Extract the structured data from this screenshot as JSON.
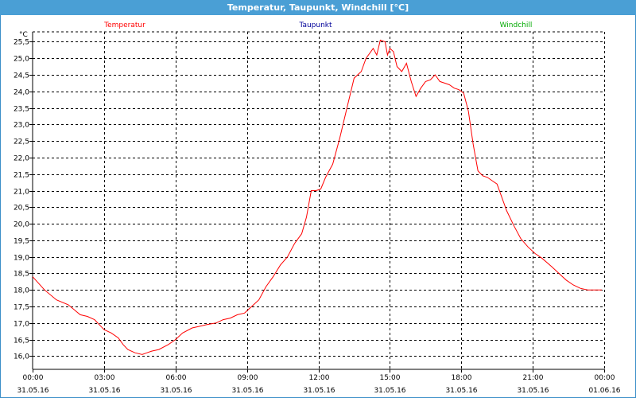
{
  "window": {
    "title": "Temperatur, Taupunkt, Windchill [°C]"
  },
  "colors": {
    "titlebar": "#4a9fd5",
    "temperatur": "#ff0000",
    "taupunkt": "#000099",
    "windchill": "#00aa00",
    "grid": "#000000"
  },
  "chart_data": {
    "type": "line",
    "title": "Temperatur, Taupunkt, Windchill [°C]",
    "ylabel": "°C",
    "ylim": [
      15.6,
      25.8
    ],
    "yticks": [
      "16,0",
      "16,5",
      "17,0",
      "17,5",
      "18,0",
      "18,5",
      "19,0",
      "19,5",
      "20,0",
      "20,5",
      "21,0",
      "21,5",
      "22,0",
      "22,5",
      "23,0",
      "23,5",
      "24,0",
      "24,5",
      "25,0",
      "25,5"
    ],
    "xlim": [
      0,
      24
    ],
    "xticks": [
      {
        "time": "00:00",
        "date": "31.05.16"
      },
      {
        "time": "03:00",
        "date": "31.05.16"
      },
      {
        "time": "06:00",
        "date": "31.05.16"
      },
      {
        "time": "09:00",
        "date": "31.05.16"
      },
      {
        "time": "12:00",
        "date": "31.05.16"
      },
      {
        "time": "15:00",
        "date": "31.05.16"
      },
      {
        "time": "18:00",
        "date": "31.05.16"
      },
      {
        "time": "21:00",
        "date": "31.05.16"
      },
      {
        "time": "00:00",
        "date": "01.06.16"
      }
    ],
    "grid": true,
    "legend": [
      {
        "name": "Temperatur",
        "color": "#ff0000"
      },
      {
        "name": "Taupunkt",
        "color": "#000099"
      },
      {
        "name": "Windchill",
        "color": "#00aa00"
      }
    ],
    "series": [
      {
        "name": "Temperatur",
        "color": "#ff0000",
        "x": [
          0,
          0.5,
          1,
          1.5,
          2,
          2.3,
          2.6,
          3,
          3.3,
          3.6,
          3.8,
          4,
          4.3,
          4.6,
          4.8,
          5,
          5.3,
          5.7,
          6,
          6.3,
          6.7,
          7,
          7.3,
          7.7,
          8,
          8.3,
          8.6,
          8.9,
          9.2,
          9.5,
          9.8,
          10.1,
          10.4,
          10.7,
          11,
          11.3,
          11.5,
          11.7,
          11.9,
          12.1,
          12.3,
          12.6,
          12.9,
          13.2,
          13.5,
          13.8,
          14,
          14.3,
          14.45,
          14.6,
          14.8,
          14.9,
          15,
          15.15,
          15.3,
          15.5,
          15.7,
          15.9,
          16.1,
          16.3,
          16.5,
          16.7,
          16.9,
          17.1,
          17.3,
          17.5,
          17.7,
          17.9,
          18.1,
          18.3,
          18.5,
          18.7,
          18.9,
          19.1,
          19.3,
          19.5,
          19.7,
          19.9,
          20.2,
          20.5,
          20.8,
          21.1,
          21.4,
          21.8,
          22.1,
          22.4,
          22.7,
          23,
          23.3,
          23.6,
          23.9
        ],
        "values": [
          18.4,
          18.0,
          17.7,
          17.55,
          17.25,
          17.2,
          17.1,
          16.8,
          16.7,
          16.55,
          16.35,
          16.2,
          16.1,
          16.05,
          16.1,
          16.15,
          16.2,
          16.35,
          16.5,
          16.7,
          16.85,
          16.9,
          16.95,
          17.0,
          17.1,
          17.15,
          17.25,
          17.3,
          17.5,
          17.7,
          18.1,
          18.4,
          18.75,
          19.0,
          19.4,
          19.7,
          20.2,
          21.0,
          21.0,
          21.05,
          21.4,
          21.8,
          22.6,
          23.5,
          24.4,
          24.6,
          25.0,
          25.3,
          25.1,
          25.55,
          25.5,
          25.1,
          25.3,
          25.2,
          24.75,
          24.6,
          24.85,
          24.3,
          23.85,
          24.1,
          24.3,
          24.35,
          24.5,
          24.3,
          24.25,
          24.2,
          24.1,
          24.05,
          23.95,
          23.4,
          22.4,
          21.6,
          21.45,
          21.4,
          21.3,
          21.2,
          20.8,
          20.4,
          19.95,
          19.55,
          19.3,
          19.1,
          18.95,
          18.7,
          18.5,
          18.3,
          18.15,
          18.05,
          18.0,
          18.0,
          18.0
        ]
      }
    ]
  }
}
